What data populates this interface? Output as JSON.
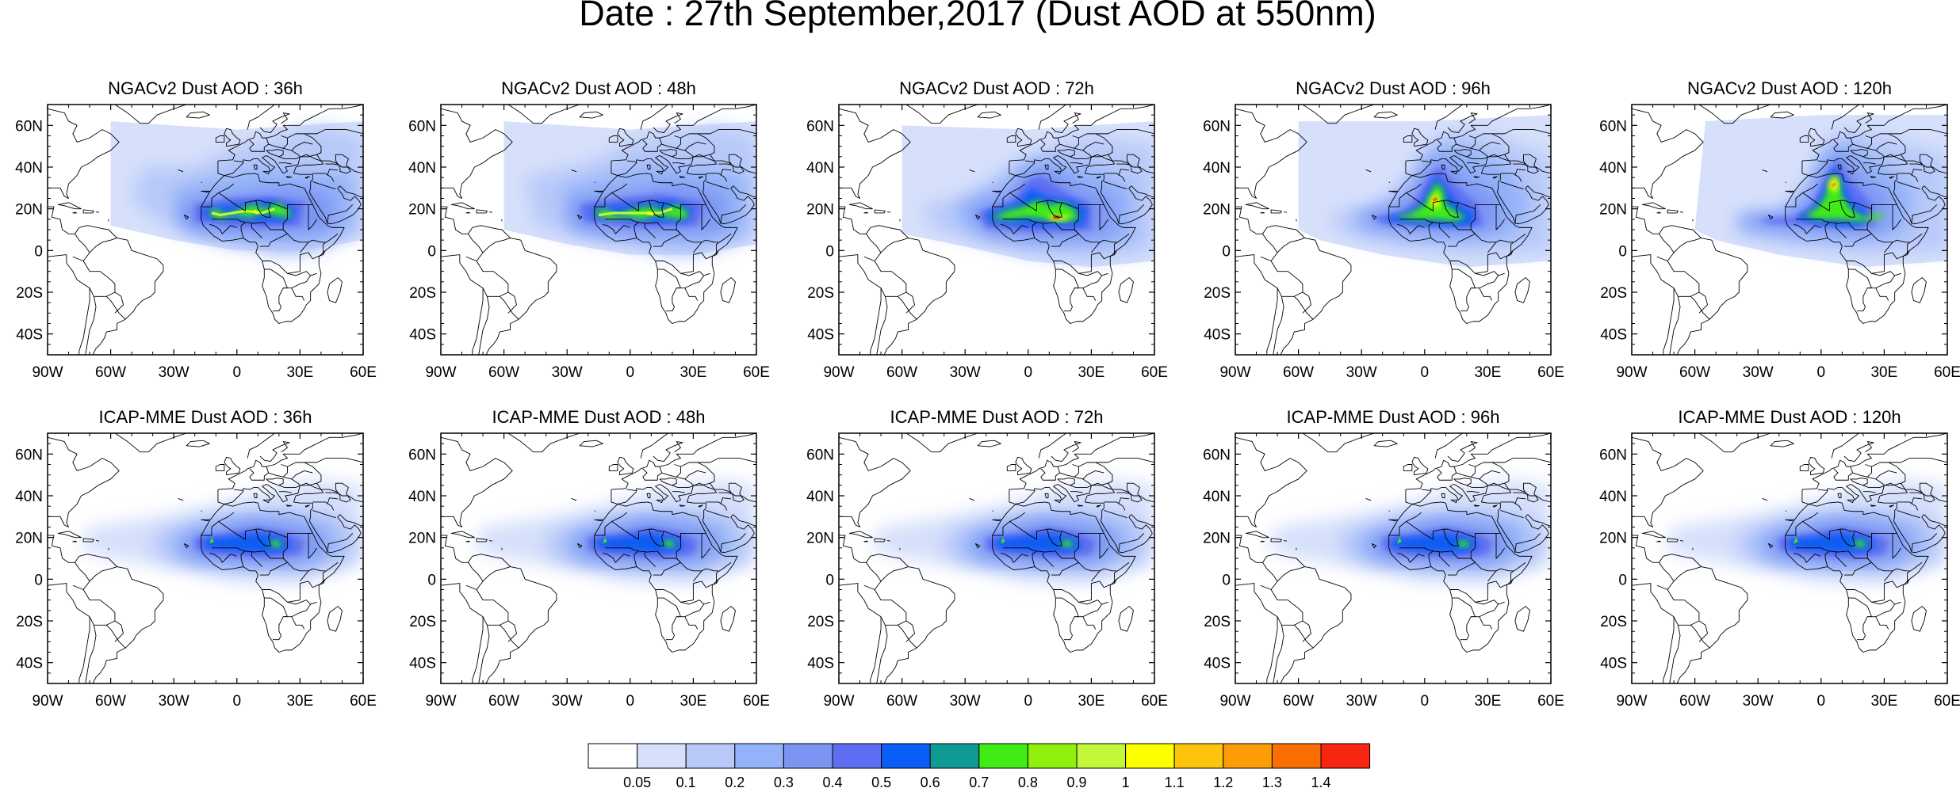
{
  "title": "Date : 27th September,2017 (Dust AOD at 550nm)",
  "lon_labels": [
    "90W",
    "60W",
    "30W",
    "0",
    "30E",
    "60E"
  ],
  "lat_labels": [
    "60N",
    "40N",
    "20N",
    "0",
    "20S",
    "40S"
  ],
  "extent": {
    "lon": [
      -90,
      60
    ],
    "lat": [
      -50,
      70
    ]
  },
  "rows": [
    {
      "model": "NGACv2",
      "panels": [
        {
          "label": "NGACv2 Dust AOD : 36h",
          "lead": "36h"
        },
        {
          "label": "NGACv2 Dust AOD : 48h",
          "lead": "48h"
        },
        {
          "label": "NGACv2 Dust AOD : 72h",
          "lead": "72h"
        },
        {
          "label": "NGACv2 Dust AOD : 96h",
          "lead": "96h"
        },
        {
          "label": "NGACv2 Dust AOD : 120h",
          "lead": "120h"
        }
      ]
    },
    {
      "model": "ICAP-MME",
      "panels": [
        {
          "label": "ICAP-MME Dust AOD : 36h",
          "lead": "36h"
        },
        {
          "label": "ICAP-MME Dust AOD : 48h",
          "lead": "48h"
        },
        {
          "label": "ICAP-MME Dust AOD : 72h",
          "lead": "72h"
        },
        {
          "label": "ICAP-MME Dust AOD : 96h",
          "lead": "96h"
        },
        {
          "label": "ICAP-MME Dust AOD : 120h",
          "lead": "120h"
        }
      ]
    }
  ],
  "colorbar": {
    "colors": [
      "#ffffff",
      "#d6e0fb",
      "#b8c9f9",
      "#94b2f9",
      "#7c95f3",
      "#5d6ef2",
      "#0a5df5",
      "#109a96",
      "#40ec14",
      "#8ef00c",
      "#c2f73a",
      "#fbff00",
      "#fcc40b",
      "#fd9d05",
      "#fa6e04",
      "#f82510"
    ],
    "labels": [
      "0.05",
      "0.1",
      "0.2",
      "0.3",
      "0.4",
      "0.5",
      "0.6",
      "0.7",
      "0.8",
      "0.9",
      "1",
      "1.1",
      "1.2",
      "1.3",
      "1.4"
    ]
  }
}
